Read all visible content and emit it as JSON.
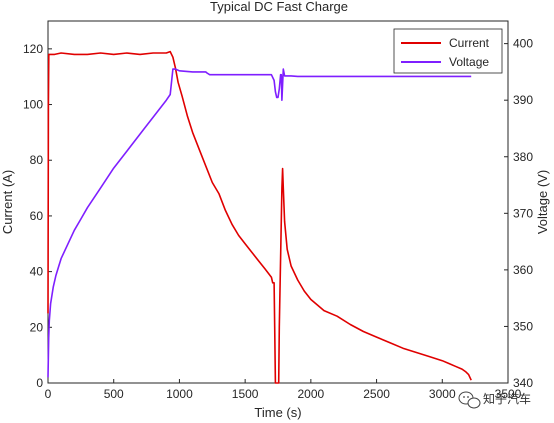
{
  "chart_data": {
    "type": "line",
    "title": "Typical DC Fast Charge",
    "xlabel": "Time (s)",
    "ylabel": "Current (A)",
    "y2label": "Voltage (V)",
    "xlim": [
      0,
      3500
    ],
    "ylim": [
      0,
      130
    ],
    "y2lim": [
      340,
      404
    ],
    "xticks": [
      0,
      500,
      1000,
      1500,
      2000,
      2500,
      3000,
      3500
    ],
    "yticks": [
      0,
      20,
      40,
      60,
      80,
      100,
      120
    ],
    "y2ticks": [
      340,
      350,
      360,
      370,
      380,
      390,
      400
    ],
    "grid": false,
    "legend_position": "top-right",
    "series": [
      {
        "name": "Current",
        "axis": "left",
        "color": "#e00000",
        "x": [
          0,
          3,
          6,
          50,
          100,
          200,
          300,
          400,
          500,
          600,
          700,
          800,
          900,
          930,
          950,
          970,
          990,
          1020,
          1060,
          1100,
          1150,
          1200,
          1250,
          1300,
          1350,
          1400,
          1450,
          1500,
          1550,
          1600,
          1650,
          1700,
          1710,
          1720,
          1725,
          1730,
          1740,
          1750,
          1755,
          1760,
          1770,
          1780,
          1785,
          1790,
          1800,
          1820,
          1850,
          1900,
          1950,
          2000,
          2050,
          2100,
          2200,
          2300,
          2400,
          2500,
          2600,
          2700,
          2800,
          2900,
          3000,
          3050,
          3100,
          3150,
          3180,
          3200,
          3220
        ],
        "y": [
          25,
          100,
          118,
          118,
          118.5,
          118,
          118,
          118.5,
          118,
          118.5,
          118,
          118.5,
          118.5,
          119,
          117,
          113,
          108,
          103,
          96,
          90,
          84,
          78,
          72,
          68,
          62,
          57,
          53,
          50,
          47,
          44,
          41,
          38,
          36,
          36,
          20,
          0,
          0,
          0,
          0,
          20,
          45,
          70,
          77,
          70,
          58,
          48,
          42,
          37,
          33,
          30,
          28,
          26,
          24,
          21,
          18.5,
          16.5,
          14.5,
          12.5,
          11,
          9.5,
          8,
          7,
          6,
          5,
          4,
          3,
          1
        ]
      },
      {
        "name": "Voltage",
        "axis": "right",
        "color": "#7f1fff",
        "x": [
          0,
          5,
          10,
          20,
          40,
          60,
          80,
          100,
          150,
          200,
          250,
          300,
          400,
          500,
          600,
          700,
          800,
          850,
          900,
          930,
          950,
          970,
          1000,
          1100,
          1200,
          1210,
          1230,
          1260,
          1400,
          1500,
          1600,
          1700,
          1720,
          1730,
          1740,
          1750,
          1760,
          1770,
          1775,
          1780,
          1790,
          1800,
          1850,
          1900,
          2000,
          2500,
          3000,
          3220
        ],
        "y": [
          341,
          348,
          351,
          354,
          357,
          359,
          360.5,
          362,
          364.5,
          367,
          369,
          371,
          374.5,
          378,
          381,
          384,
          387,
          388.5,
          390,
          391,
          395.5,
          395.5,
          395.2,
          395,
          395,
          394.8,
          394.5,
          394.5,
          394.5,
          394.5,
          394.5,
          394.5,
          393.5,
          391.5,
          390.5,
          390.5,
          392,
          394.5,
          394.5,
          390,
          395.5,
          394.3,
          394.3,
          394.2,
          394.2,
          394.2,
          394.2,
          394.2
        ]
      }
    ]
  },
  "watermark": {
    "text": "知乎汽车",
    "icon": "wechat-icon"
  }
}
